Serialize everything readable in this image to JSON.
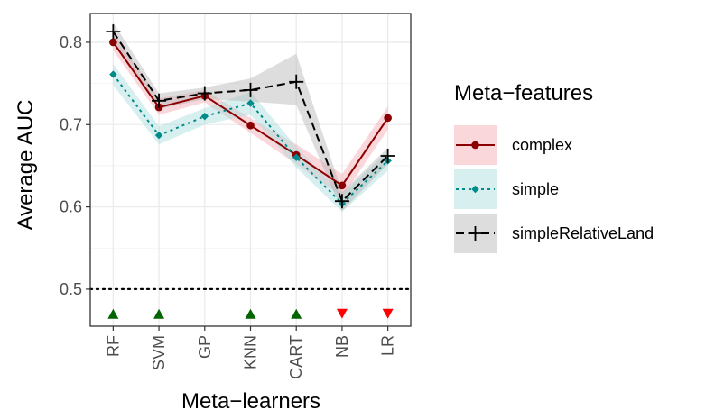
{
  "chart_data": {
    "type": "line",
    "title": "",
    "xlabel": "Meta−learners",
    "ylabel": "Average AUC",
    "categories": [
      "RF",
      "SVM",
      "GP",
      "KNN",
      "CART",
      "NB",
      "LR"
    ],
    "ylim": [
      0.455,
      0.835
    ],
    "yticks": [
      0.5,
      0.6,
      0.7,
      0.8
    ],
    "ytick_labels": [
      "0.5",
      "0.6",
      "0.7",
      "0.8"
    ],
    "grid": true,
    "reference_line": {
      "y": 0.5,
      "style": "dotted",
      "color": "#000000"
    },
    "legend": {
      "title": "Meta−features",
      "position": "right"
    },
    "series": [
      {
        "name": "complex",
        "line_style": "solid",
        "marker": "circle",
        "color": "#8b0000",
        "band_color": "#f4a6b0",
        "values": [
          0.8,
          0.721,
          0.735,
          0.699,
          0.663,
          0.626,
          0.708
        ],
        "lower": [
          0.79,
          0.712,
          0.727,
          0.69,
          0.652,
          0.612,
          0.694
        ],
        "upper": [
          0.812,
          0.732,
          0.742,
          0.708,
          0.676,
          0.64,
          0.722
        ]
      },
      {
        "name": "simple",
        "line_style": "dotted",
        "marker": "diamond",
        "color": "#008b8b",
        "band_color": "#a6dcdc",
        "values": [
          0.761,
          0.687,
          0.71,
          0.726,
          0.66,
          0.604,
          0.656
        ],
        "lower": [
          0.748,
          0.676,
          0.7,
          0.712,
          0.648,
          0.594,
          0.644
        ],
        "upper": [
          0.774,
          0.698,
          0.72,
          0.74,
          0.673,
          0.615,
          0.668
        ]
      },
      {
        "name": "simpleRelativeLand",
        "line_style": "dashed",
        "marker": "plus",
        "color": "#000000",
        "band_color": "#b3b3b3",
        "values": [
          0.813,
          0.729,
          0.738,
          0.742,
          0.752,
          0.607,
          0.662
        ],
        "lower": [
          0.802,
          0.719,
          0.731,
          0.728,
          0.724,
          0.595,
          0.652
        ],
        "upper": [
          0.824,
          0.738,
          0.745,
          0.756,
          0.786,
          0.618,
          0.672
        ]
      }
    ],
    "significance_markers": {
      "y": 0.47,
      "items": [
        {
          "category": "RF",
          "direction": "up",
          "color": "#006400"
        },
        {
          "category": "SVM",
          "direction": "up",
          "color": "#006400"
        },
        {
          "category": "KNN",
          "direction": "up",
          "color": "#006400"
        },
        {
          "category": "CART",
          "direction": "up",
          "color": "#006400"
        },
        {
          "category": "NB",
          "direction": "down",
          "color": "#ff0000"
        },
        {
          "category": "LR",
          "direction": "down",
          "color": "#ff0000"
        }
      ]
    }
  }
}
